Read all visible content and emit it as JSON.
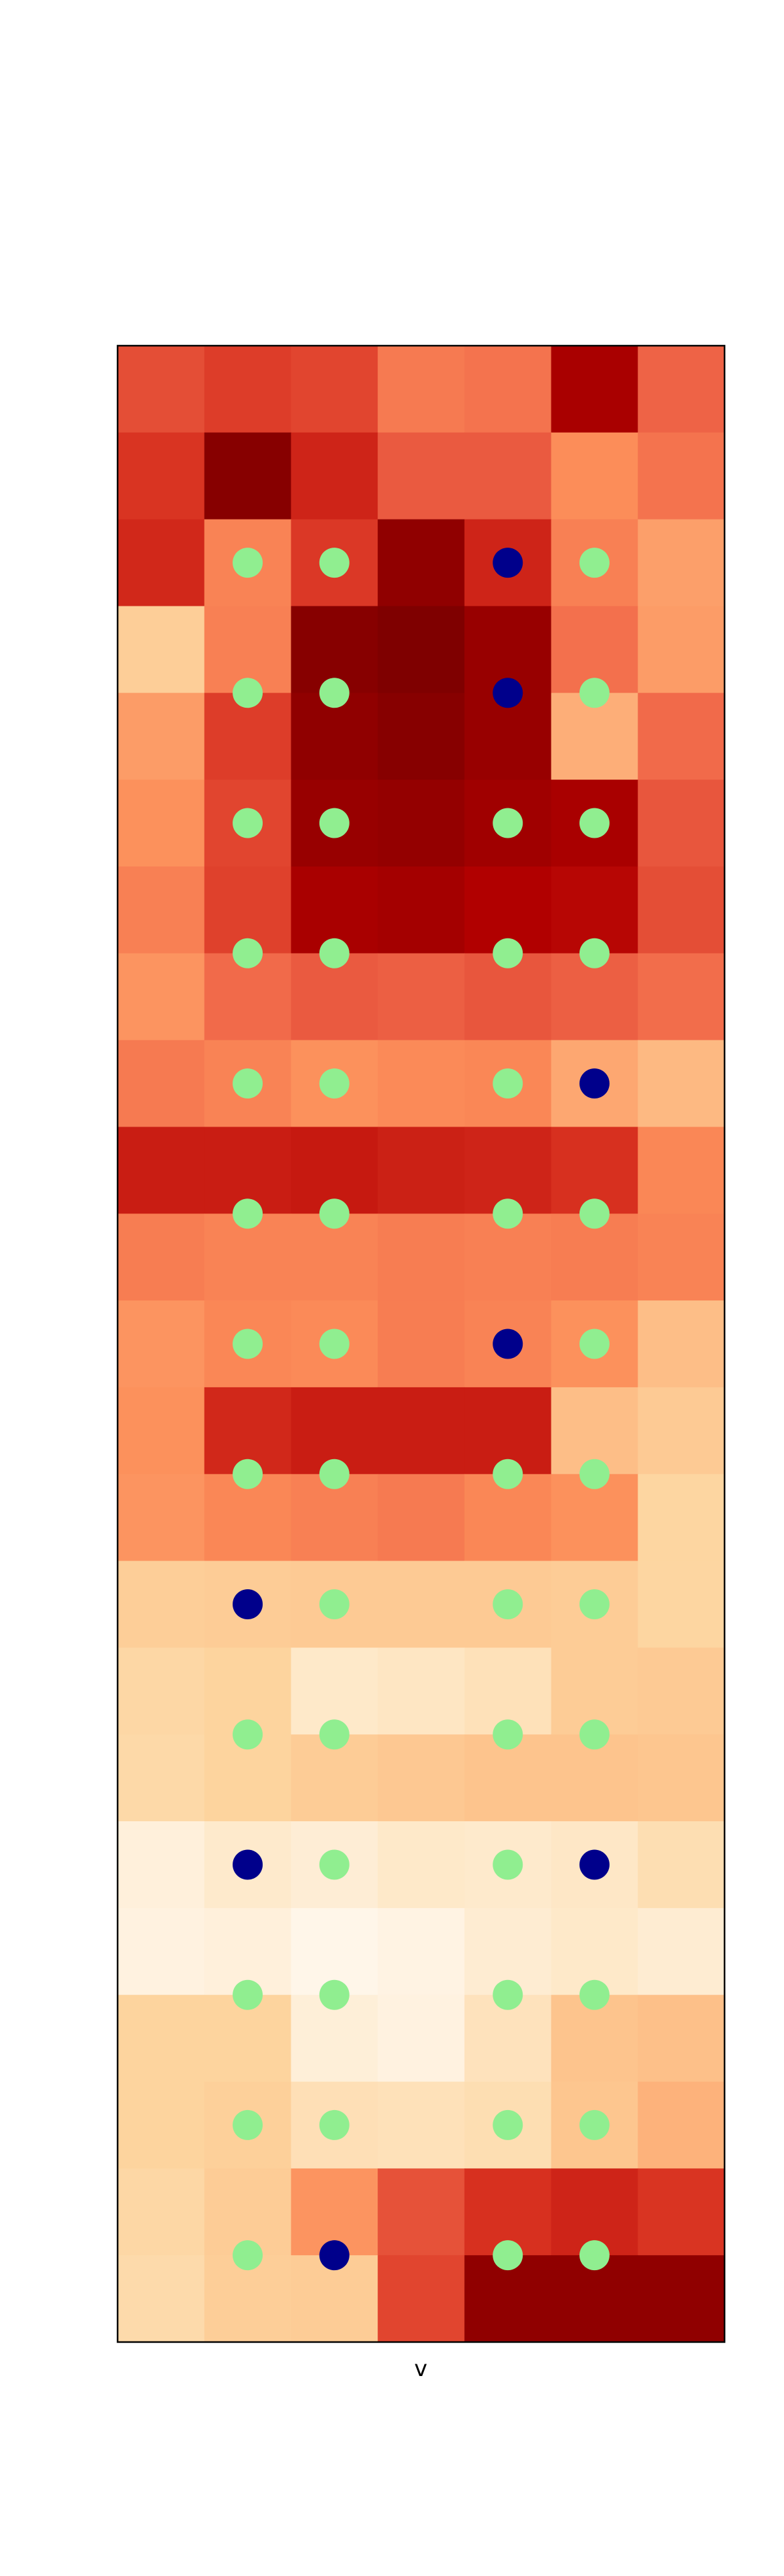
{
  "chart_data": {
    "type": "heatmap",
    "title": "",
    "xlabel": "v",
    "ylabel": "",
    "colormap": "OrRd",
    "grid": false,
    "colorbar": false,
    "cell_intensity": [
      [
        0.68,
        0.72,
        0.7,
        0.56,
        0.58,
        0.9,
        0.63
      ],
      [
        0.74,
        0.98,
        0.78,
        0.65,
        0.65,
        0.5,
        0.58
      ],
      [
        0.77,
        0.53,
        0.73,
        0.96,
        0.78,
        0.54,
        0.45
      ],
      [
        0.28,
        0.54,
        0.98,
        1.0,
        0.94,
        0.59,
        0.46
      ],
      [
        0.46,
        0.72,
        0.96,
        0.98,
        0.94,
        0.41,
        0.61
      ],
      [
        0.49,
        0.7,
        0.94,
        0.95,
        0.92,
        0.9,
        0.66
      ],
      [
        0.54,
        0.71,
        0.9,
        0.91,
        0.88,
        0.86,
        0.68
      ],
      [
        0.48,
        0.61,
        0.65,
        0.64,
        0.66,
        0.64,
        0.6
      ],
      [
        0.56,
        0.53,
        0.49,
        0.51,
        0.52,
        0.43,
        0.38
      ],
      [
        0.8,
        0.8,
        0.81,
        0.79,
        0.78,
        0.75,
        0.52
      ],
      [
        0.55,
        0.53,
        0.53,
        0.55,
        0.54,
        0.55,
        0.53
      ],
      [
        0.48,
        0.52,
        0.51,
        0.55,
        0.53,
        0.49,
        0.36
      ],
      [
        0.49,
        0.77,
        0.8,
        0.8,
        0.8,
        0.36,
        0.3
      ],
      [
        0.48,
        0.52,
        0.54,
        0.56,
        0.52,
        0.49,
        0.24
      ],
      [
        0.28,
        0.29,
        0.3,
        0.3,
        0.3,
        0.29,
        0.24
      ],
      [
        0.23,
        0.25,
        0.12,
        0.14,
        0.17,
        0.29,
        0.3
      ],
      [
        0.22,
        0.25,
        0.29,
        0.31,
        0.33,
        0.33,
        0.32
      ],
      [
        0.06,
        0.11,
        0.08,
        0.12,
        0.11,
        0.13,
        0.19
      ],
      [
        0.04,
        0.06,
        0.01,
        0.03,
        0.09,
        0.12,
        0.09
      ],
      [
        0.25,
        0.25,
        0.07,
        0.04,
        0.16,
        0.33,
        0.35
      ],
      [
        0.25,
        0.27,
        0.18,
        0.17,
        0.19,
        0.32,
        0.4
      ],
      [
        0.23,
        0.29,
        0.48,
        0.67,
        0.75,
        0.78,
        0.74
      ],
      [
        0.21,
        0.28,
        0.29,
        0.7,
        0.96,
        0.96,
        0.96
      ]
    ],
    "markers": [
      {
        "col": 1,
        "row": 2.5,
        "color": "#90ee90"
      },
      {
        "col": 2,
        "row": 2.5,
        "color": "#90ee90"
      },
      {
        "col": 4,
        "row": 2.5,
        "color": "#00008b"
      },
      {
        "col": 5,
        "row": 2.5,
        "color": "#90ee90"
      },
      {
        "col": 1,
        "row": 4.0,
        "color": "#90ee90"
      },
      {
        "col": 2,
        "row": 4.0,
        "color": "#90ee90"
      },
      {
        "col": 4,
        "row": 4.0,
        "color": "#00008b"
      },
      {
        "col": 5,
        "row": 4.0,
        "color": "#90ee90"
      },
      {
        "col": 1,
        "row": 5.5,
        "color": "#90ee90"
      },
      {
        "col": 2,
        "row": 5.5,
        "color": "#90ee90"
      },
      {
        "col": 4,
        "row": 5.5,
        "color": "#90ee90"
      },
      {
        "col": 5,
        "row": 5.5,
        "color": "#90ee90"
      },
      {
        "col": 1,
        "row": 7.0,
        "color": "#90ee90"
      },
      {
        "col": 2,
        "row": 7.0,
        "color": "#90ee90"
      },
      {
        "col": 4,
        "row": 7.0,
        "color": "#90ee90"
      },
      {
        "col": 5,
        "row": 7.0,
        "color": "#90ee90"
      },
      {
        "col": 1,
        "row": 8.5,
        "color": "#90ee90"
      },
      {
        "col": 2,
        "row": 8.5,
        "color": "#90ee90"
      },
      {
        "col": 4,
        "row": 8.5,
        "color": "#90ee90"
      },
      {
        "col": 5,
        "row": 8.5,
        "color": "#00008b"
      },
      {
        "col": 1,
        "row": 10.0,
        "color": "#90ee90"
      },
      {
        "col": 2,
        "row": 10.0,
        "color": "#90ee90"
      },
      {
        "col": 4,
        "row": 10.0,
        "color": "#90ee90"
      },
      {
        "col": 5,
        "row": 10.0,
        "color": "#90ee90"
      },
      {
        "col": 1,
        "row": 11.5,
        "color": "#90ee90"
      },
      {
        "col": 2,
        "row": 11.5,
        "color": "#90ee90"
      },
      {
        "col": 4,
        "row": 11.5,
        "color": "#00008b"
      },
      {
        "col": 5,
        "row": 11.5,
        "color": "#90ee90"
      },
      {
        "col": 1,
        "row": 13.0,
        "color": "#90ee90"
      },
      {
        "col": 2,
        "row": 13.0,
        "color": "#90ee90"
      },
      {
        "col": 4,
        "row": 13.0,
        "color": "#90ee90"
      },
      {
        "col": 5,
        "row": 13.0,
        "color": "#90ee90"
      },
      {
        "col": 1,
        "row": 14.5,
        "color": "#00008b"
      },
      {
        "col": 2,
        "row": 14.5,
        "color": "#90ee90"
      },
      {
        "col": 4,
        "row": 14.5,
        "color": "#90ee90"
      },
      {
        "col": 5,
        "row": 14.5,
        "color": "#90ee90"
      },
      {
        "col": 1,
        "row": 16.0,
        "color": "#90ee90"
      },
      {
        "col": 2,
        "row": 16.0,
        "color": "#90ee90"
      },
      {
        "col": 4,
        "row": 16.0,
        "color": "#90ee90"
      },
      {
        "col": 5,
        "row": 16.0,
        "color": "#90ee90"
      },
      {
        "col": 1,
        "row": 17.5,
        "color": "#00008b"
      },
      {
        "col": 2,
        "row": 17.5,
        "color": "#90ee90"
      },
      {
        "col": 4,
        "row": 17.5,
        "color": "#90ee90"
      },
      {
        "col": 5,
        "row": 17.5,
        "color": "#00008b"
      },
      {
        "col": 1,
        "row": 19.0,
        "color": "#90ee90"
      },
      {
        "col": 2,
        "row": 19.0,
        "color": "#90ee90"
      },
      {
        "col": 4,
        "row": 19.0,
        "color": "#90ee90"
      },
      {
        "col": 5,
        "row": 19.0,
        "color": "#90ee90"
      },
      {
        "col": 1,
        "row": 20.5,
        "color": "#90ee90"
      },
      {
        "col": 2,
        "row": 20.5,
        "color": "#90ee90"
      },
      {
        "col": 4,
        "row": 20.5,
        "color": "#90ee90"
      },
      {
        "col": 5,
        "row": 20.5,
        "color": "#90ee90"
      },
      {
        "col": 1,
        "row": 22.0,
        "color": "#90ee90"
      },
      {
        "col": 2,
        "row": 22.0,
        "color": "#00008b"
      },
      {
        "col": 4,
        "row": 22.0,
        "color": "#90ee90"
      },
      {
        "col": 5,
        "row": 22.0,
        "color": "#90ee90"
      }
    ]
  }
}
